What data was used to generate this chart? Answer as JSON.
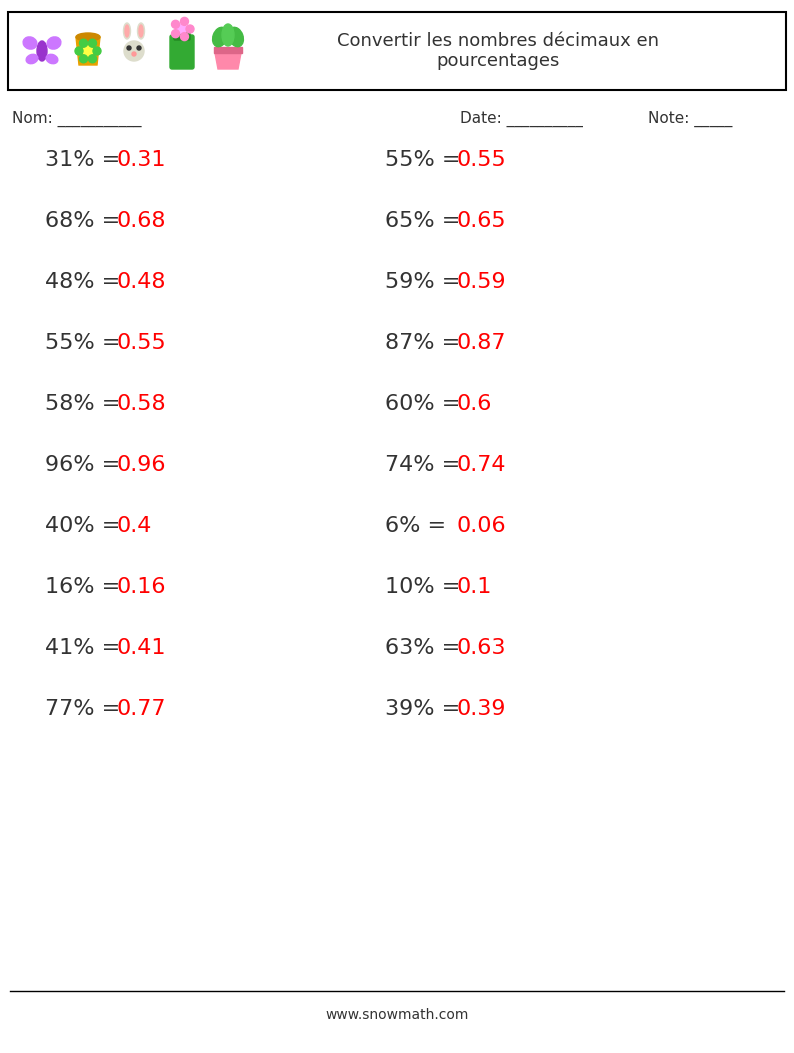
{
  "title": "Convertir les nombres décimaux en\npourcentages",
  "nom_label": "Nom: ",
  "nom_line": "___________",
  "date_label": "Date: ",
  "date_line": "__________",
  "note_label": "Note: ",
  "note_line": "_____",
  "left_questions": [
    {
      "q": "31% = ",
      "a": "0.31"
    },
    {
      "q": "68% = ",
      "a": "0.68"
    },
    {
      "q": "48% = ",
      "a": "0.48"
    },
    {
      "q": "55% = ",
      "a": "0.55"
    },
    {
      "q": "58% = ",
      "a": "0.58"
    },
    {
      "q": "96% = ",
      "a": "0.96"
    },
    {
      "q": "40% = ",
      "a": "0.4"
    },
    {
      "q": "16% = ",
      "a": "0.16"
    },
    {
      "q": "41% = ",
      "a": "0.41"
    },
    {
      "q": "77% = ",
      "a": "0.77"
    }
  ],
  "right_questions": [
    {
      "q": "55% = ",
      "a": "0.55"
    },
    {
      "q": "65% = ",
      "a": "0.65"
    },
    {
      "q": "59% = ",
      "a": "0.59"
    },
    {
      "q": "87% = ",
      "a": "0.87"
    },
    {
      "q": "60% = ",
      "a": "0.6"
    },
    {
      "q": "74% = ",
      "a": "0.74"
    },
    {
      "q": "6% = ",
      "a": "0.06"
    },
    {
      "q": "10% = ",
      "a": "0.1"
    },
    {
      "q": "63% = ",
      "a": "0.63"
    },
    {
      "q": "39% = ",
      "a": "0.39"
    }
  ],
  "question_color": "#333333",
  "answer_color": "#ff0000",
  "background_color": "#ffffff",
  "border_color": "#000000",
  "font_size_questions": 16,
  "font_size_title": 13,
  "font_size_labels": 11,
  "footer_text": "www.snowmath.com"
}
